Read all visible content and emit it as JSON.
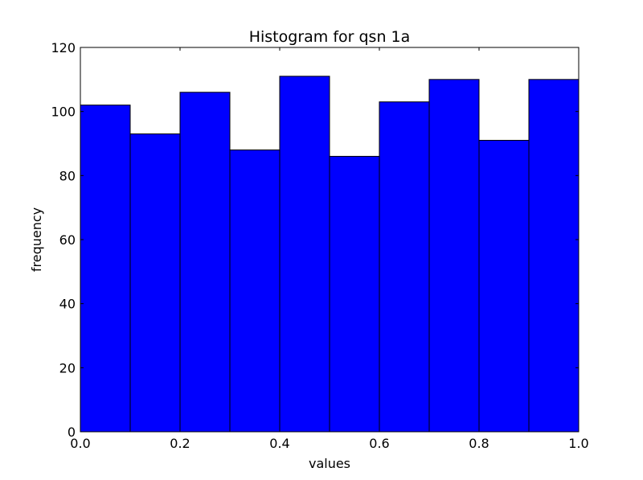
{
  "chart_data": {
    "type": "bar",
    "title": "Histogram for qsn 1a",
    "xlabel": "values",
    "ylabel": "frequency",
    "bins": [
      {
        "start": 0.0,
        "end": 0.1,
        "value": 102
      },
      {
        "start": 0.1,
        "end": 0.2,
        "value": 93
      },
      {
        "start": 0.2,
        "end": 0.3,
        "value": 106
      },
      {
        "start": 0.3,
        "end": 0.4,
        "value": 88
      },
      {
        "start": 0.4,
        "end": 0.5,
        "value": 111
      },
      {
        "start": 0.5,
        "end": 0.6,
        "value": 86
      },
      {
        "start": 0.6,
        "end": 0.7,
        "value": 103
      },
      {
        "start": 0.7,
        "end": 0.8,
        "value": 110
      },
      {
        "start": 0.8,
        "end": 0.9,
        "value": 91
      },
      {
        "start": 0.9,
        "end": 1.0,
        "value": 110
      }
    ],
    "xlim": [
      0.0,
      1.0
    ],
    "ylim": [
      0,
      120
    ],
    "xticks": [
      "0.0",
      "0.2",
      "0.4",
      "0.6",
      "0.8",
      "1.0"
    ],
    "yticks": [
      "0",
      "20",
      "40",
      "60",
      "80",
      "100",
      "120"
    ],
    "grid": false,
    "bar_color": "#0000ff",
    "edge_color": "#000000"
  }
}
